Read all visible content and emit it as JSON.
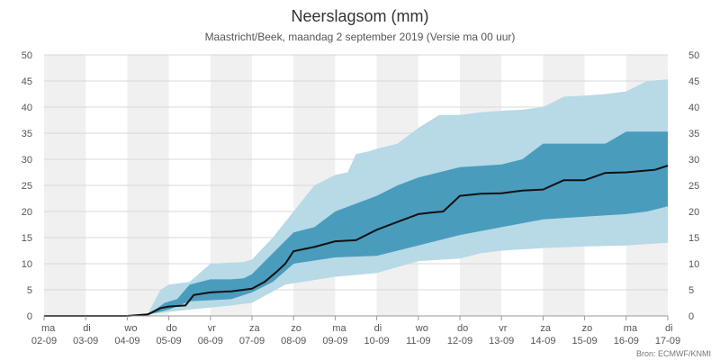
{
  "chart_data": {
    "type": "area",
    "title": "Neerslagsom (mm)",
    "subtitle": "Maastricht/Beek, maandag 2 september 2019 (Versie ma 00 uur)",
    "source": "Bron: ECMWF/KNMI",
    "ylim": [
      0,
      50
    ],
    "y_ticks": [
      0,
      5,
      10,
      15,
      20,
      25,
      30,
      35,
      40,
      45,
      50
    ],
    "xlim": [
      0,
      15
    ],
    "x_ticks": [
      {
        "day": "ma",
        "date": "02-09"
      },
      {
        "day": "di",
        "date": "03-09"
      },
      {
        "day": "wo",
        "date": "04-09"
      },
      {
        "day": "do",
        "date": "05-09"
      },
      {
        "day": "vr",
        "date": "06-09"
      },
      {
        "day": "za",
        "date": "07-09"
      },
      {
        "day": "zo",
        "date": "08-09"
      },
      {
        "day": "ma",
        "date": "09-09"
      },
      {
        "day": "di",
        "date": "10-09"
      },
      {
        "day": "wo",
        "date": "11-09"
      },
      {
        "day": "do",
        "date": "12-09"
      },
      {
        "day": "vr",
        "date": "13-09"
      },
      {
        "day": "za",
        "date": "14-09"
      },
      {
        "day": "zo",
        "date": "15-09"
      },
      {
        "day": "ma",
        "date": "16-09"
      },
      {
        "day": "di",
        "date": "17-09"
      }
    ],
    "colors": {
      "outer_band": "#b8d9e6",
      "inner_band": "#4a9cbd",
      "median": "#111111",
      "weekend_bg": "#f0f0f0",
      "grid": "#d8d8d8",
      "axis_text": "#555555"
    },
    "series": [
      {
        "name": "outer_low",
        "x": [
          0,
          2.3,
          2.7,
          3.5,
          4.5,
          5.0,
          5.8,
          7.0,
          8.0,
          9.0,
          10.0,
          10.5,
          11.0,
          12.0,
          13.0,
          14.0,
          15.0
        ],
        "values": [
          0,
          0,
          0.5,
          1.2,
          2.0,
          2.5,
          6.0,
          7.5,
          8.2,
          10.5,
          11.0,
          12.0,
          12.5,
          13.0,
          13.3,
          13.5,
          14.0
        ]
      },
      {
        "name": "inner_low",
        "x": [
          0,
          2.3,
          2.7,
          3.0,
          3.5,
          4.5,
          5.0,
          5.5,
          6.0,
          7.0,
          8.0,
          9.0,
          10.0,
          11.0,
          12.0,
          13.0,
          14.0,
          14.5,
          15.0
        ],
        "values": [
          0,
          0,
          0.6,
          1.2,
          2.8,
          3.2,
          4.5,
          6.5,
          10.0,
          11.2,
          11.5,
          13.5,
          15.5,
          17.0,
          18.5,
          19.0,
          19.5,
          20.0,
          21.0
        ]
      },
      {
        "name": "median",
        "x": [
          0,
          2.0,
          2.5,
          2.8,
          3.0,
          3.4,
          3.6,
          4.0,
          4.5,
          5.0,
          5.3,
          5.6,
          5.8,
          6.0,
          6.5,
          7.0,
          7.5,
          8.0,
          8.5,
          9.0,
          9.3,
          9.6,
          10.0,
          10.5,
          11.0,
          11.5,
          12.0,
          12.5,
          13.0,
          13.5,
          14.0,
          14.7,
          15.0
        ],
        "values": [
          0,
          0,
          0.3,
          1.5,
          1.8,
          2.0,
          4.0,
          4.5,
          4.7,
          5.2,
          6.5,
          8.5,
          10.0,
          12.4,
          13.2,
          14.3,
          14.5,
          16.5,
          18.0,
          19.5,
          19.8,
          20.0,
          23.0,
          23.4,
          23.5,
          24.0,
          24.2,
          26.0,
          26.0,
          27.4,
          27.5,
          28.0,
          28.8
        ]
      },
      {
        "name": "inner_high",
        "x": [
          0,
          2.3,
          2.6,
          2.9,
          3.2,
          3.5,
          4.0,
          4.5,
          4.8,
          5.0,
          5.5,
          6.0,
          6.5,
          7.0,
          7.5,
          8.0,
          8.5,
          9.0,
          10.0,
          11.0,
          11.5,
          12.0,
          13.0,
          13.5,
          14.0,
          15.0
        ],
        "values": [
          0,
          0,
          0.8,
          2.5,
          3.2,
          6.0,
          7.0,
          7.0,
          7.2,
          8.0,
          12.0,
          16.0,
          17.0,
          20.0,
          21.5,
          23.0,
          25.0,
          26.5,
          28.5,
          29.0,
          30.0,
          33.0,
          33.0,
          33.0,
          35.3,
          35.3
        ]
      },
      {
        "name": "outer_high",
        "x": [
          0,
          2.3,
          2.5,
          2.8,
          3.0,
          3.5,
          4.0,
          4.5,
          4.8,
          5.0,
          5.5,
          6.0,
          6.5,
          7.0,
          7.3,
          7.5,
          7.8,
          8.0,
          8.5,
          9.0,
          9.5,
          10.0,
          10.5,
          11.0,
          11.5,
          12.0,
          12.5,
          13.0,
          13.5,
          14.0,
          14.5,
          15.0
        ],
        "values": [
          0,
          0,
          0.5,
          5.0,
          6.0,
          6.5,
          10.0,
          10.2,
          10.3,
          10.8,
          15.0,
          20.0,
          25.0,
          27.0,
          27.5,
          31.0,
          31.5,
          32.0,
          33.0,
          36.0,
          38.5,
          38.5,
          39.0,
          39.3,
          39.5,
          40.0,
          42.0,
          42.2,
          42.5,
          43.0,
          45.0,
          45.3
        ]
      }
    ]
  }
}
